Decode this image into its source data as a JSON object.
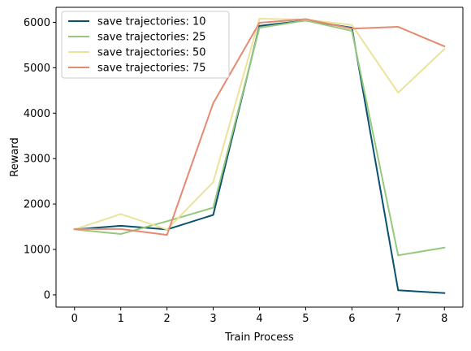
{
  "chart_data": {
    "type": "line",
    "title": "",
    "xlabel": "Train Process",
    "ylabel": "Reward",
    "x": [
      0,
      1,
      2,
      3,
      4,
      5,
      6,
      7,
      8
    ],
    "xlim": [
      -0.4,
      8.4
    ],
    "ylim": [
      -270,
      6330
    ],
    "xticks": [
      0,
      1,
      2,
      3,
      4,
      5,
      6,
      7,
      8
    ],
    "yticks": [
      0,
      1000,
      2000,
      3000,
      4000,
      5000,
      6000
    ],
    "grid": false,
    "legend_position": "top-left",
    "series": [
      {
        "name": "save trajectories: 10",
        "color": "#08516f",
        "values": [
          1440,
          1520,
          1440,
          1760,
          5920,
          6040,
          5880,
          100,
          40
        ]
      },
      {
        "name": "save trajectories: 25",
        "color": "#96c97e",
        "values": [
          1440,
          1340,
          1620,
          1920,
          5880,
          6040,
          5810,
          870,
          1040
        ]
      },
      {
        "name": "save trajectories: 50",
        "color": "#ebe39a",
        "values": [
          1440,
          1780,
          1440,
          2480,
          6080,
          6060,
          5940,
          4450,
          5410
        ]
      },
      {
        "name": "save trajectories: 75",
        "color": "#e58a72",
        "values": [
          1450,
          1450,
          1320,
          4220,
          5990,
          6070,
          5860,
          5900,
          5470
        ]
      }
    ]
  }
}
